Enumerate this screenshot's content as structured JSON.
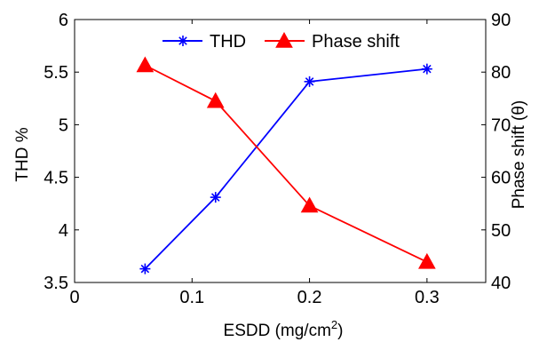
{
  "chart_data": {
    "type": "line",
    "x": [
      0.06,
      0.12,
      0.2,
      0.3
    ],
    "xlabel": "ESDD (mg/cm",
    "xlabel_sup": "2",
    "xlabel_end": ")",
    "xlim": [
      0,
      0.35
    ],
    "xticks": [
      0,
      0.1,
      0.2,
      0.3
    ],
    "xtick_labels": [
      "0",
      "0.1",
      "0.2",
      "0.3"
    ],
    "y_left": {
      "label": "THD %",
      "lim": [
        3.5,
        6
      ],
      "ticks": [
        3.5,
        4,
        4.5,
        5,
        5.5,
        6
      ],
      "tick_labels": [
        "3.5",
        "4",
        "4.5",
        "5",
        "5.5",
        "6"
      ]
    },
    "y_right": {
      "label": "Phase shift (θ)",
      "lim": [
        40,
        90
      ],
      "ticks": [
        40,
        50,
        60,
        70,
        80,
        90
      ],
      "tick_labels": [
        "40",
        "50",
        "60",
        "70",
        "80",
        "90"
      ]
    },
    "series": [
      {
        "name": "THD",
        "axis": "left",
        "marker": "asterisk",
        "color": "#0000ff",
        "values": [
          3.63,
          4.31,
          5.41,
          5.53
        ]
      },
      {
        "name": "Phase shift",
        "axis": "right",
        "marker": "triangle",
        "color": "#ff0000",
        "values": [
          81.3,
          74.5,
          54.6,
          43.9
        ]
      }
    ],
    "legend": "top-center",
    "grid": false
  }
}
